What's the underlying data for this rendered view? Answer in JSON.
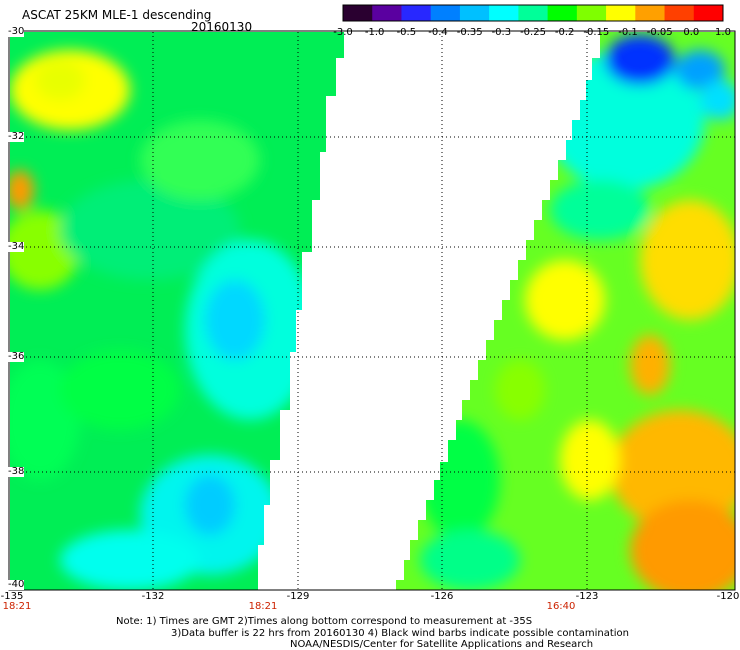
{
  "header": {
    "title": "ASCAT 25KM MLE-1 descending",
    "date": "20160130"
  },
  "colorbar": {
    "labels": [
      "-3.0",
      "-1.0",
      "-0.5",
      "-0.4",
      "-0.35",
      "-0.3",
      "-0.25",
      "-0.2",
      "-0.15",
      "-0.1",
      "-0.05",
      "0.0",
      "1.0"
    ],
    "colors": [
      "#2a0030",
      "#5a00a0",
      "#2828ff",
      "#0080ff",
      "#00c0ff",
      "#00ffff",
      "#00ff99",
      "#00ff00",
      "#7fff00",
      "#ffff00",
      "#ffa000",
      "#ff4000",
      "#ff0000"
    ]
  },
  "axes": {
    "lat_labels": [
      "-30",
      "-32",
      "-34",
      "-36",
      "-38",
      "-40"
    ],
    "lon_labels": [
      "-135",
      "-132",
      "-129",
      "-126",
      "-123",
      "-120"
    ],
    "lat_range": [
      -40,
      -30
    ],
    "lon_range": [
      -135,
      -120
    ]
  },
  "pass_times": [
    "18:21",
    "18:21",
    "16:40"
  ],
  "notes": {
    "line1": "Note: 1) Times are GMT 2)Times along bottom correspond to measurement at -35S",
    "line2": "3)Data buffer is 22 hrs from 20160130 4) Black wind barbs indicate possible contamination",
    "line3": "NOAA/NESDIS/Center for Satellite Applications and Research"
  }
}
